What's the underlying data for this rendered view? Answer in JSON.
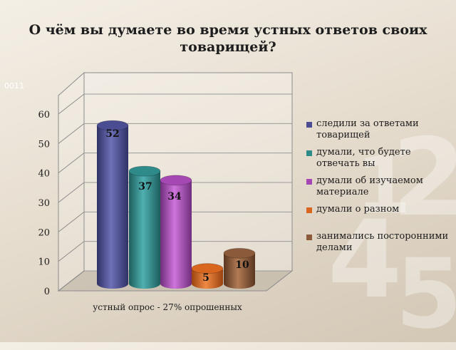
{
  "slide": {
    "title": "О чём вы думаете во время устных ответов своих товарищей?",
    "corner_code": "0011"
  },
  "decorations": {
    "digits": [
      "1",
      "2",
      "4",
      "5"
    ]
  },
  "colors": {
    "series": [
      "#4b4d93",
      "#2f8a8a",
      "#a548b3",
      "#d9661f",
      "#8a5a3a"
    ]
  },
  "chart_data": {
    "type": "bar",
    "style": "3d-cylinder",
    "categories": [
      "устный опрос - 27% опрошенных"
    ],
    "series": [
      {
        "name": "следили за ответами товарищей",
        "values": [
          52
        ]
      },
      {
        "name": "думали, что будете отвечать вы",
        "values": [
          37
        ]
      },
      {
        "name": "думали об изучаемом материале",
        "values": [
          34
        ]
      },
      {
        "name": "думали о разном",
        "values": [
          5
        ]
      },
      {
        "name": "занимались посторонними делами",
        "values": [
          10
        ]
      }
    ],
    "xlabel": "устный опрос - 27% опрошенных",
    "ylabel": "",
    "ylim": [
      0,
      60
    ],
    "yticks": [
      0,
      10,
      20,
      30,
      40,
      50,
      60
    ],
    "grid": true,
    "legend_position": "right"
  }
}
